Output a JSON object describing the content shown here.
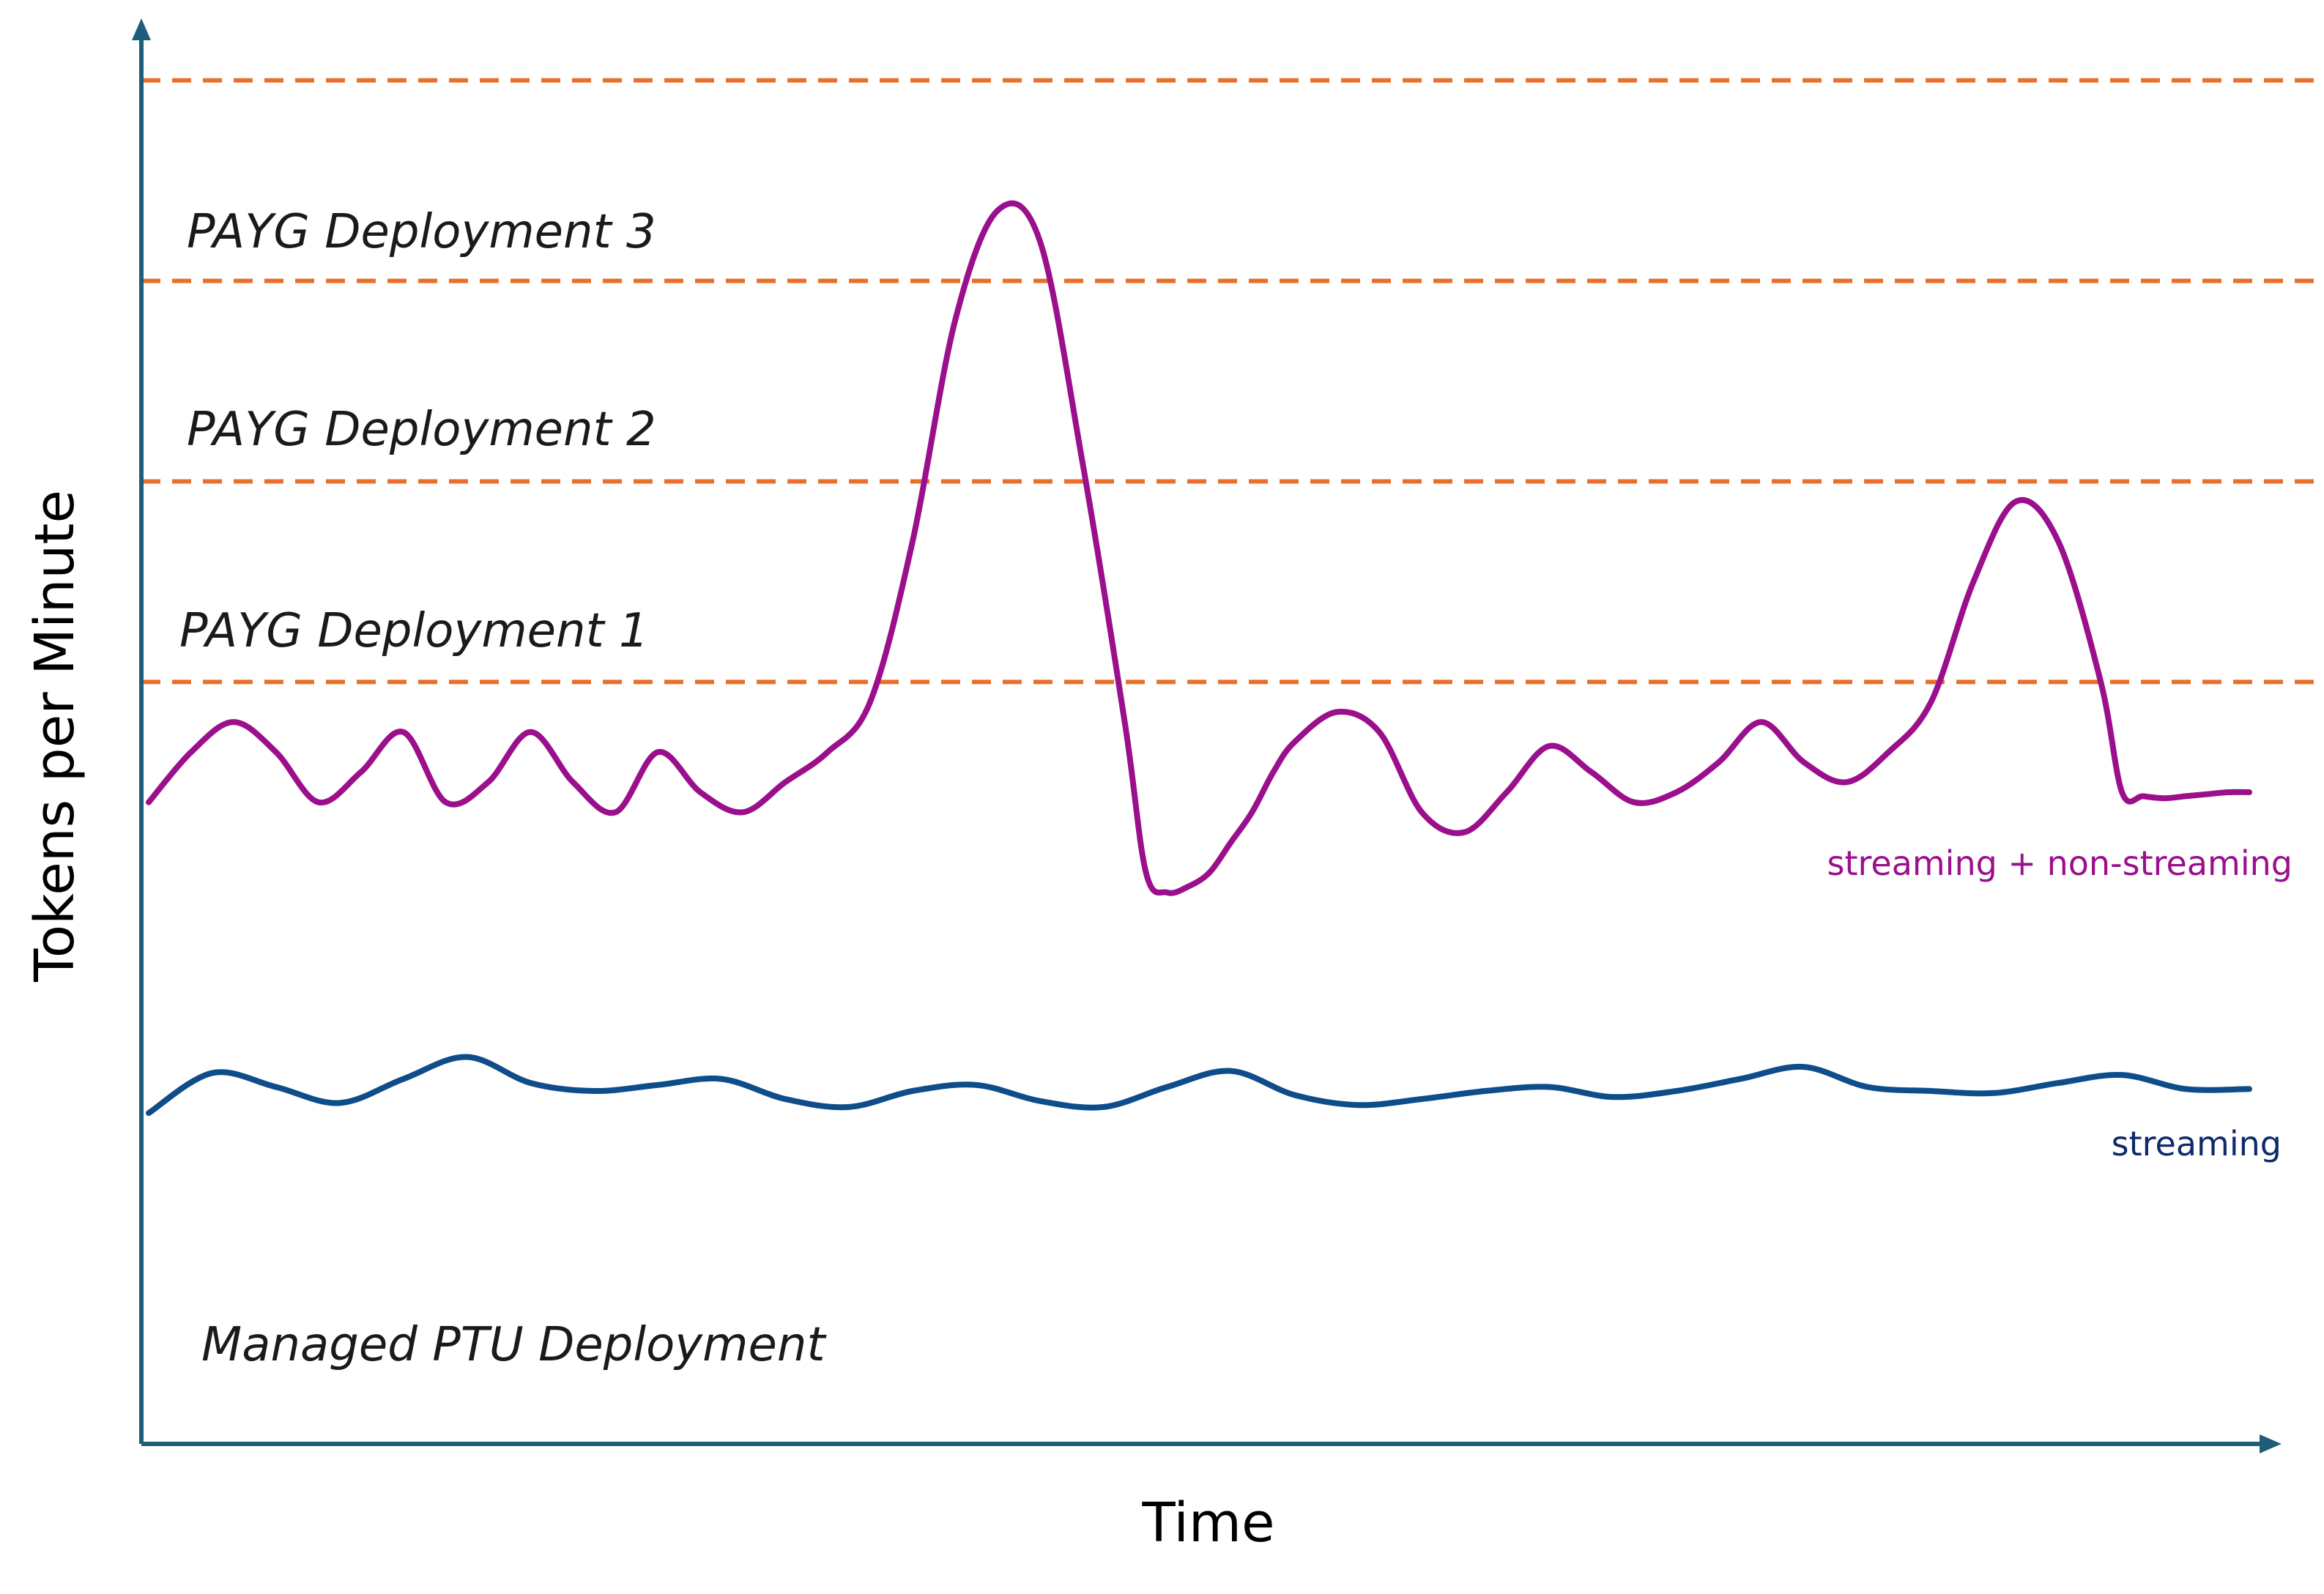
{
  "chart_data": {
    "type": "line",
    "xlabel": "Time",
    "ylabel": "Tokens per Minute",
    "thresholds": [
      {
        "label": "",
        "value": 6.8
      },
      {
        "label": "PAYG Deployment 3",
        "value": 5.8
      },
      {
        "label": "PAYG Deployment 2",
        "value": 4.8
      },
      {
        "label": "PAYG Deployment 1",
        "value": 3.8
      }
    ],
    "base_region_label": "Managed PTU Deployment",
    "threshold_color": "#e8702a",
    "series": [
      {
        "name": "streaming + non-streaming",
        "color": "#9b0f8c",
        "x": [
          0,
          2,
          4,
          6,
          8,
          10,
          12,
          14,
          16,
          18,
          20,
          22,
          24,
          26,
          28,
          30,
          32,
          34,
          36,
          38,
          40,
          42,
          44,
          46,
          47,
          48,
          49,
          50,
          51,
          52,
          53,
          54,
          56,
          58,
          60,
          62,
          64,
          66,
          68,
          70,
          72,
          74,
          76,
          78,
          80,
          82,
          84,
          86,
          88,
          90,
          92,
          93,
          94,
          95,
          96,
          97,
          98,
          99
        ],
        "y": [
          3.2,
          3.45,
          3.6,
          3.45,
          3.2,
          3.35,
          3.55,
          3.2,
          3.3,
          3.55,
          3.3,
          3.15,
          3.45,
          3.25,
          3.15,
          3.3,
          3.45,
          3.7,
          4.5,
          5.6,
          6.15,
          6.0,
          4.9,
          3.6,
          2.85,
          2.75,
          2.78,
          2.85,
          3.0,
          3.15,
          3.35,
          3.5,
          3.65,
          3.55,
          3.15,
          3.05,
          3.25,
          3.48,
          3.35,
          3.2,
          3.25,
          3.4,
          3.6,
          3.4,
          3.3,
          3.45,
          3.7,
          4.3,
          4.7,
          4.5,
          3.8,
          3.25,
          3.23,
          3.22,
          3.23,
          3.24,
          3.25,
          3.25
        ]
      },
      {
        "name": "streaming",
        "color": "#0e4d8a",
        "x": [
          0,
          3,
          6,
          9,
          12,
          15,
          18,
          21,
          24,
          27,
          30,
          33,
          36,
          39,
          42,
          45,
          48,
          51,
          54,
          57,
          60,
          63,
          66,
          69,
          72,
          75,
          78,
          81,
          84,
          87,
          90,
          93,
          96,
          99
        ],
        "y": [
          1.65,
          1.85,
          1.78,
          1.7,
          1.82,
          1.93,
          1.8,
          1.76,
          1.79,
          1.82,
          1.72,
          1.68,
          1.76,
          1.79,
          1.71,
          1.68,
          1.78,
          1.86,
          1.74,
          1.69,
          1.72,
          1.76,
          1.78,
          1.73,
          1.76,
          1.82,
          1.88,
          1.78,
          1.76,
          1.75,
          1.8,
          1.84,
          1.77,
          1.77
        ]
      }
    ],
    "xlim": [
      0,
      100
    ],
    "ylim": [
      0,
      7
    ]
  }
}
